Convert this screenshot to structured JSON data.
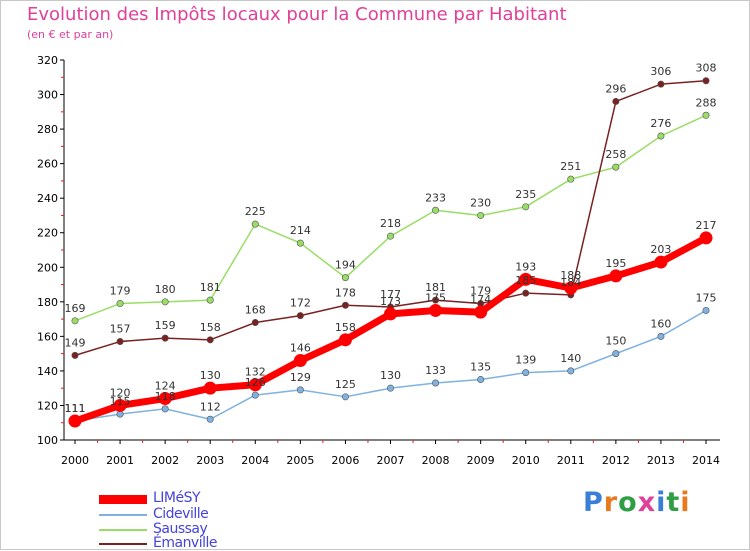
{
  "header": {
    "title": "Evolution des Impôts locaux pour la Commune par Habitant",
    "subtitle": "(en € et par an)"
  },
  "logo": {
    "text": "Proxiti",
    "colors": [
      "#3a7fd6",
      "#e87a1e",
      "#2f9e44",
      "#e0409a",
      "#3a7fd6",
      "#2f9e44",
      "#e87a1e"
    ]
  },
  "chart_data": {
    "type": "line",
    "title": "Evolution des Impôts locaux pour la Commune par Habitant",
    "subtitle": "(en € et par an)",
    "xlabel": "",
    "ylabel": "",
    "x": [
      "2000",
      "2001",
      "2002",
      "2003",
      "2004",
      "2005",
      "2006",
      "2007",
      "2008",
      "2009",
      "2010",
      "2011",
      "2012",
      "2013",
      "2014"
    ],
    "ylim": [
      100,
      320
    ],
    "yticks": [
      100,
      120,
      140,
      160,
      180,
      200,
      220,
      240,
      260,
      280,
      300,
      320
    ],
    "grid": false,
    "legend": "bottom-left",
    "series": [
      {
        "name": "LIMéSY",
        "color": "#ff0000",
        "values": [
          111,
          120,
          124,
          130,
          132,
          146,
          158,
          173,
          175,
          174,
          193,
          188,
          195,
          203,
          217
        ]
      },
      {
        "name": "Cideville",
        "color": "#7fb2e0",
        "values": [
          111,
          115,
          118,
          112,
          126,
          129,
          125,
          130,
          133,
          135,
          139,
          140,
          150,
          160,
          175
        ]
      },
      {
        "name": "Saussay",
        "color": "#99dd66",
        "values": [
          169,
          179,
          180,
          181,
          225,
          214,
          194,
          218,
          233,
          230,
          235,
          251,
          258,
          276,
          288
        ]
      },
      {
        "name": "Émanville",
        "color": "#7a2222",
        "values": [
          149,
          157,
          159,
          158,
          168,
          172,
          178,
          177,
          181,
          179,
          185,
          184,
          296,
          306,
          308
        ]
      }
    ]
  }
}
